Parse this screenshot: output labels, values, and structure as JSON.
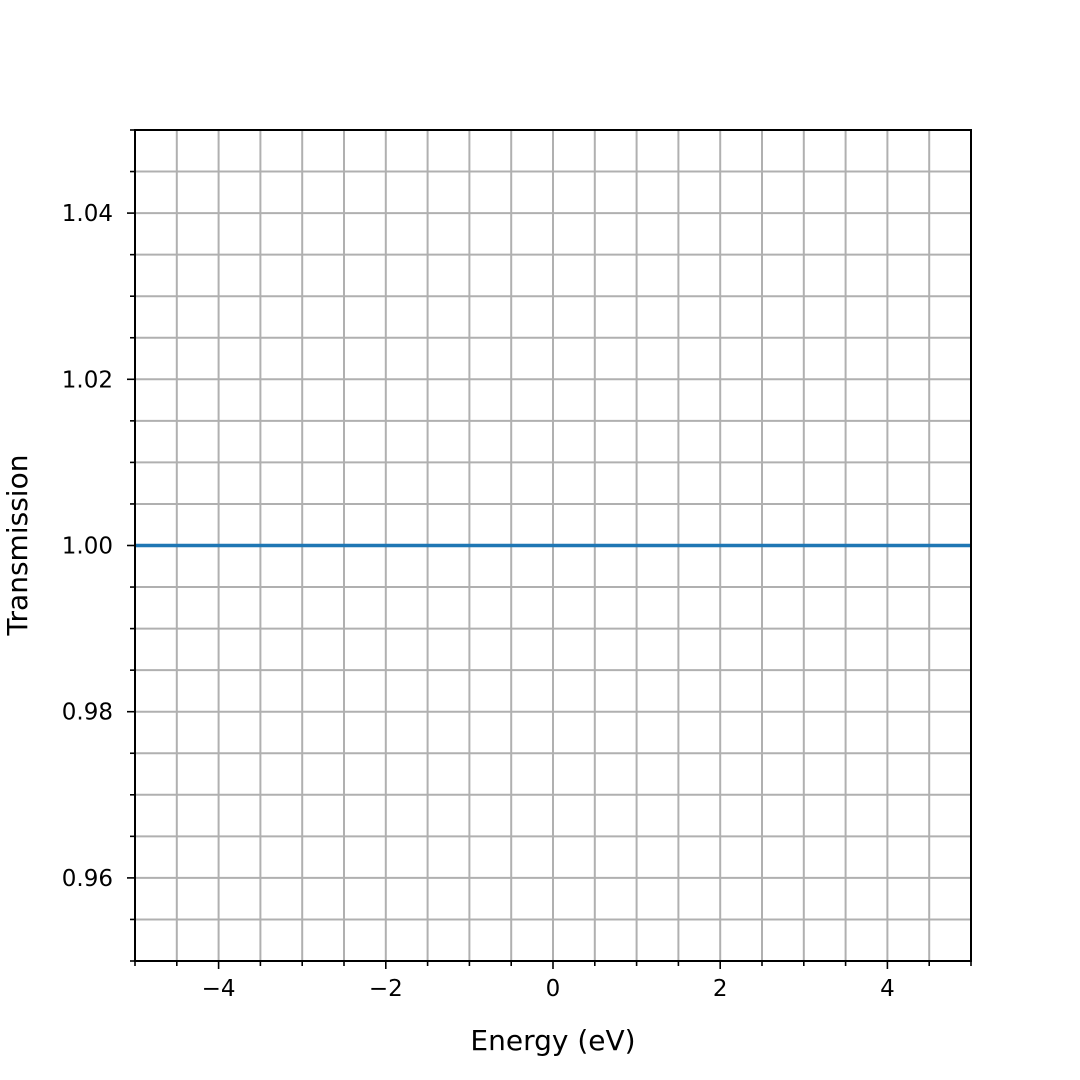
{
  "chart_data": {
    "type": "line",
    "title": "",
    "xlabel": "Energy (eV)",
    "ylabel": "Transmission",
    "xlim": [
      -5,
      5
    ],
    "ylim": [
      0.95,
      1.05
    ],
    "x_ticks": [
      -4,
      -2,
      0,
      2,
      4
    ],
    "x_tick_labels": [
      "−4",
      "−2",
      "0",
      "2",
      "4"
    ],
    "x_minor_step": 0.5,
    "y_ticks": [
      0.96,
      0.98,
      1.0,
      1.02,
      1.04
    ],
    "y_tick_labels": [
      "0.96",
      "0.98",
      "1.00",
      "1.02",
      "1.04"
    ],
    "y_minor_step": 0.005,
    "grid": true,
    "grid_includes_minor": true,
    "series": [
      {
        "color": "#1f77b4",
        "x": [
          -5,
          5
        ],
        "y": [
          1.0,
          1.0
        ]
      }
    ]
  }
}
